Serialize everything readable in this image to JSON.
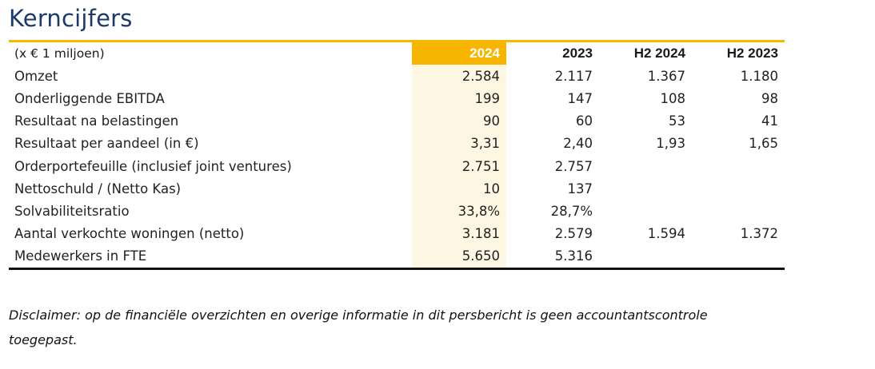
{
  "title": "Kerncijfers",
  "colors": {
    "title": "#1b3a6b",
    "accent": "#f7b500",
    "highlight_bg": "#fdf6e3"
  },
  "table": {
    "unit_label": "(x € 1 miljoen)",
    "columns": [
      "2024",
      "2023",
      "H2 2024",
      "H2 2023"
    ],
    "rows": [
      {
        "label": "Omzet",
        "values": [
          "2.584",
          "2.117",
          "1.367",
          "1.180"
        ]
      },
      {
        "label": "Onderliggende EBITDA",
        "values": [
          "199",
          "147",
          "108",
          "98"
        ]
      },
      {
        "label": "Resultaat na belastingen",
        "values": [
          "90",
          "60",
          "53",
          "41"
        ]
      },
      {
        "label": "Resultaat per aandeel (in €)",
        "values": [
          "3,31",
          "2,40",
          "1,93",
          "1,65"
        ]
      },
      {
        "label": "Orderportefeuille (inclusief joint ventures)",
        "values": [
          "2.751",
          "2.757",
          "",
          ""
        ]
      },
      {
        "label": "Nettoschuld / (Netto Kas)",
        "values": [
          "10",
          "137",
          "",
          ""
        ]
      },
      {
        "label": "Solvabiliteitsratio",
        "values": [
          "33,8%",
          "28,7%",
          "",
          ""
        ]
      },
      {
        "label": "Aantal verkochte woningen (netto)",
        "values": [
          "3.181",
          "2.579",
          "1.594",
          "1.372"
        ]
      },
      {
        "label": "Medewerkers in FTE",
        "values": [
          "5.650",
          "5.316",
          "",
          ""
        ]
      }
    ]
  },
  "disclaimer": "Disclaimer: op de financiële overzichten en overige informatie in dit persbericht is geen accountantscontrole toegepast."
}
